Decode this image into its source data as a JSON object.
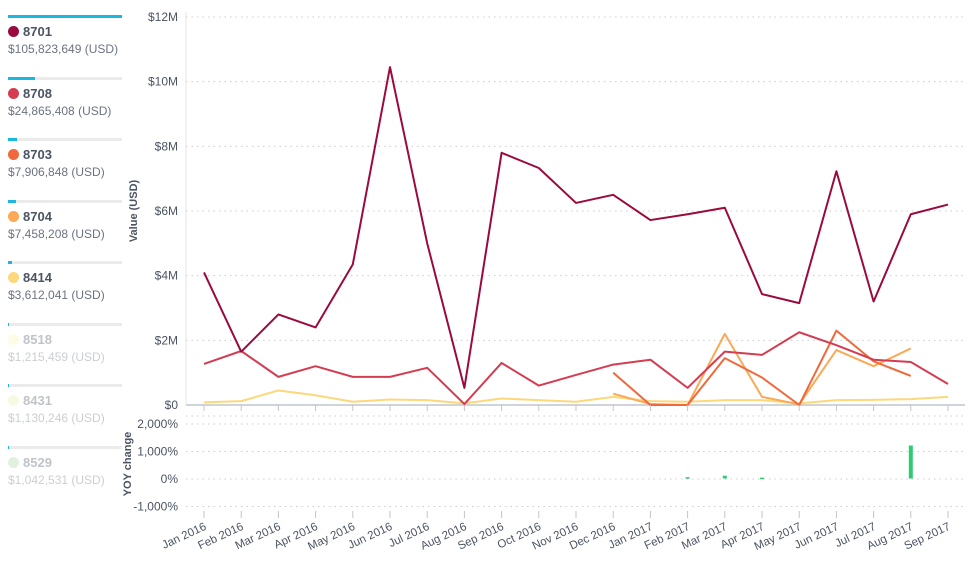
{
  "legend": [
    {
      "name": "8701",
      "total": "$105,823,649 (USD)",
      "color": "#9b0a3f",
      "share": 1.0,
      "active": true
    },
    {
      "name": "8708",
      "total": "$24,865,408 (USD)",
      "color": "#d43d51",
      "share": 0.235,
      "active": true
    },
    {
      "name": "8703",
      "total": "$7,906,848 (USD)",
      "color": "#f0693c",
      "share": 0.075,
      "active": true
    },
    {
      "name": "8704",
      "total": "$7,458,208 (USD)",
      "color": "#fba955",
      "share": 0.07,
      "active": true
    },
    {
      "name": "8414",
      "total": "$3,612,041 (USD)",
      "color": "#fdd87a",
      "share": 0.034,
      "active": true
    },
    {
      "name": "8518",
      "total": "$1,215,459 (USD)",
      "color": "#fdf7b8",
      "share": 0.011,
      "active": false
    },
    {
      "name": "8431",
      "total": "$1,130,246 (USD)",
      "color": "#e4f2b0",
      "share": 0.011,
      "active": false
    },
    {
      "name": "8529",
      "total": "$1,042,531 (USD)",
      "color": "#a9dca0",
      "share": 0.01,
      "active": false
    }
  ],
  "chart_data": [
    {
      "type": "line",
      "ylabel": "Value (USD)",
      "ylim": [
        0,
        12000000
      ],
      "yticks": [
        "$0",
        "$2M",
        "$4M",
        "$6M",
        "$8M",
        "$10M",
        "$12M"
      ],
      "categories": [
        "Jan 2016",
        "Feb 2016",
        "Mar 2016",
        "Apr 2016",
        "May 2016",
        "Jun 2016",
        "Jul 2016",
        "Aug 2016",
        "Sep 2016",
        "Oct 2016",
        "Nov 2016",
        "Dec 2016",
        "Jan 2017",
        "Feb 2017",
        "Mar 2017",
        "Apr 2017",
        "May 2017",
        "Jun 2017",
        "Jul 2017",
        "Aug 2017",
        "Sep 2017"
      ],
      "series": [
        {
          "name": "8701",
          "color": "#9b0a3f",
          "values": [
            4.1,
            1.65,
            2.8,
            2.4,
            4.35,
            10.45,
            5.0,
            0.53,
            7.8,
            7.33,
            6.25,
            6.5,
            5.72,
            5.9,
            6.1,
            3.43,
            3.15,
            7.23,
            3.2,
            5.9,
            6.2
          ]
        },
        {
          "name": "8708",
          "color": "#d43d51",
          "values": [
            1.27,
            1.67,
            0.87,
            1.2,
            0.87,
            0.87,
            1.15,
            0.03,
            1.3,
            0.6,
            0.93,
            1.25,
            1.4,
            0.53,
            1.65,
            1.55,
            2.25,
            1.85,
            1.4,
            1.33,
            0.65
          ]
        },
        {
          "name": "8703",
          "color": "#f0693c",
          "values": [
            null,
            null,
            null,
            null,
            null,
            null,
            null,
            null,
            null,
            null,
            null,
            1.0,
            0,
            0,
            1.45,
            0.85,
            0,
            2.3,
            1.35,
            0.9,
            null
          ]
        },
        {
          "name": "8704",
          "color": "#fba955",
          "values": [
            null,
            null,
            null,
            null,
            null,
            null,
            null,
            null,
            null,
            null,
            null,
            0.35,
            0.03,
            0,
            2.2,
            0.25,
            0.02,
            1.7,
            1.2,
            1.75,
            null
          ]
        },
        {
          "name": "8414",
          "color": "#fdd87a",
          "values": [
            0.08,
            0.12,
            0.45,
            0.3,
            0.1,
            0.17,
            0.15,
            0.05,
            0.2,
            0.15,
            0.1,
            0.25,
            0.12,
            0.1,
            0.15,
            0.15,
            0.05,
            0.15,
            0.16,
            0.18,
            0.25
          ]
        }
      ],
      "value_unit": "millions USD"
    },
    {
      "type": "bar",
      "ylabel": "YOY change",
      "ylim": [
        -1000,
        2000
      ],
      "yticks": [
        "-1,000%",
        "0%",
        "1,000%",
        "2,000%"
      ],
      "color": "#2ecc71",
      "values": [
        null,
        null,
        null,
        null,
        null,
        null,
        null,
        null,
        null,
        null,
        null,
        null,
        null,
        50,
        100,
        30,
        null,
        null,
        null,
        1200,
        null
      ]
    }
  ]
}
